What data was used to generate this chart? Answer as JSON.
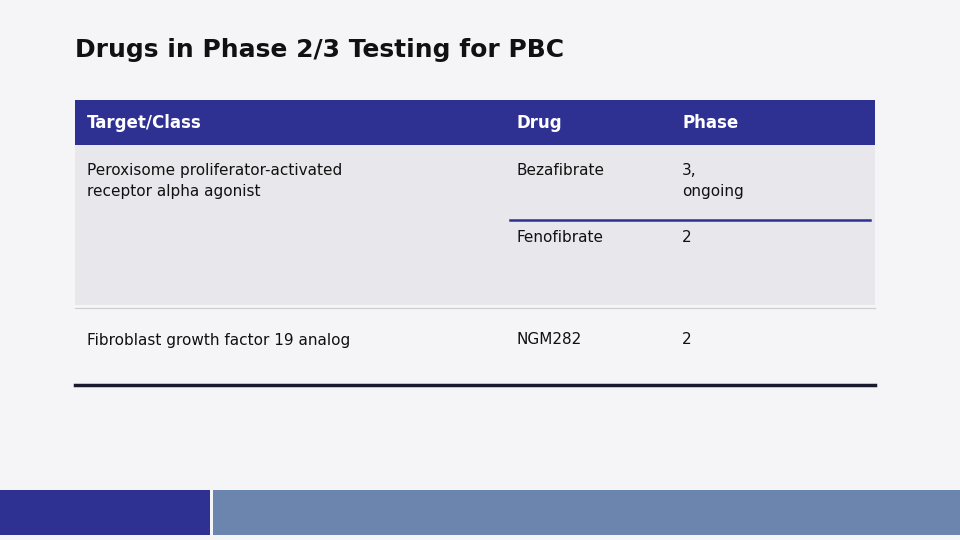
{
  "title": "Drugs in Phase 2/3 Testing for PBC",
  "title_fontsize": 18,
  "title_fontweight": "bold",
  "background_color": "#f5f5f7",
  "header_bg_color": "#2e3192",
  "header_text_color": "#ffffff",
  "row1_bg_color": "#e8e8ec",
  "row2_bg_color": "#f5f5f7",
  "col_splits_fig": [
    75,
    505,
    670,
    870
  ],
  "header_row": [
    "Target/Class",
    "Drug",
    "Phase"
  ],
  "footer_bar1_color": "#2e3192",
  "footer_bar2_color": "#6b85ae",
  "inner_line_color": "#2e3192",
  "bottom_border_color": "#1a1a2e",
  "cell_fontsize": 11,
  "header_fontsize": 12
}
